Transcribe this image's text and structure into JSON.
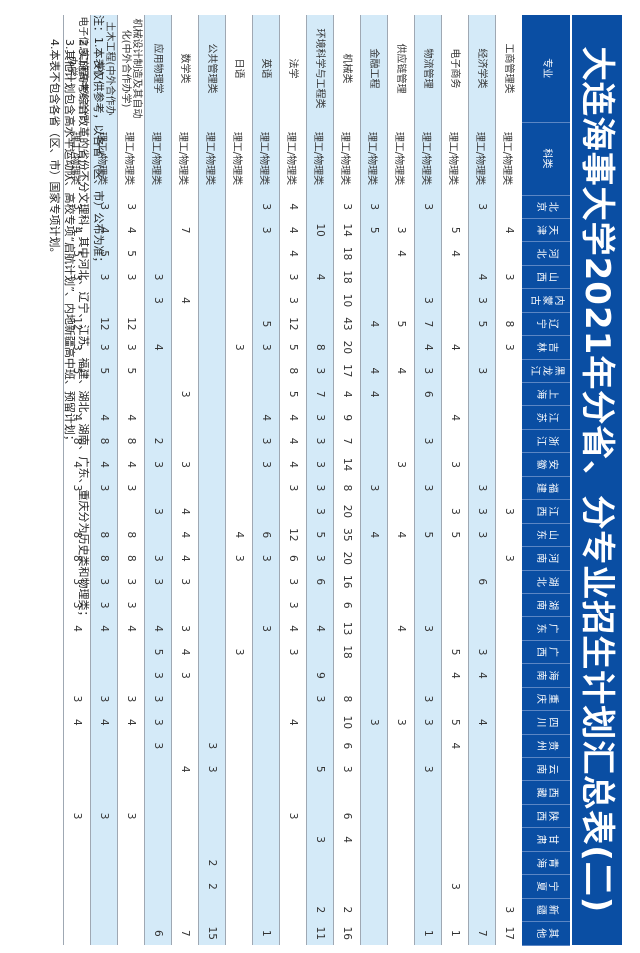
{
  "title": "大连海事大学2021年分省、分专业招生计划汇总表(二)",
  "colors": {
    "header_blue": "#0a4ea3",
    "stripe": "#d4eaf8"
  },
  "headers": {
    "major": "专业",
    "category": "科类",
    "provinces": [
      "北京",
      "天津",
      "河北",
      "山西",
      "内蒙古",
      "辽宁",
      "吉林",
      "黑龙江",
      "上海",
      "江苏",
      "浙江",
      "安徽",
      "福建",
      "江西",
      "山东",
      "河南",
      "湖北",
      "湖南",
      "广东",
      "广西",
      "海南",
      "重庆",
      "四川",
      "贵州",
      "云南",
      "西藏",
      "陕西",
      "甘肃",
      "青海",
      "宁夏",
      "新疆",
      "其他"
    ]
  },
  "rows": [
    {
      "major": "工商管理类",
      "category": "理工/物理类",
      "values": [
        "",
        "4",
        "",
        "3",
        "",
        "8",
        "3",
        "",
        "",
        "",
        "",
        "",
        "",
        "3",
        "",
        "3",
        "",
        "",
        "",
        "",
        "",
        "",
        "",
        "",
        "",
        "",
        "",
        "",
        "",
        "",
        "3",
        "17"
      ]
    },
    {
      "major": "经济学类",
      "category": "理工/物理类",
      "values": [
        "3",
        "",
        "",
        "4",
        "3",
        "5",
        "",
        "3",
        "",
        "",
        "",
        "",
        "3",
        "3",
        "3",
        "",
        "6",
        "",
        "",
        "3",
        "4",
        "",
        "4",
        "",
        "",
        "",
        "",
        "",
        "",
        "",
        "",
        "7"
      ]
    },
    {
      "major": "电子商务",
      "category": "理工/物理类",
      "values": [
        "",
        "5",
        "4",
        "",
        "",
        "",
        "4",
        "",
        "",
        "4",
        "",
        "3",
        "",
        "3",
        "5",
        "",
        "",
        "",
        "",
        "5",
        "4",
        "",
        "5",
        "4",
        "",
        "",
        "",
        "",
        "",
        "3",
        "",
        "1"
      ]
    },
    {
      "major": "物流管理",
      "category": "理工/物理类",
      "values": [
        "3",
        "",
        "",
        "",
        "3",
        "7",
        "4",
        "3",
        "6",
        "",
        "3",
        "",
        "3",
        "",
        "5",
        "",
        "",
        "",
        "3",
        "",
        "",
        "3",
        "3",
        "",
        "3",
        "",
        "",
        "",
        "",
        "",
        "",
        "1"
      ]
    },
    {
      "major": "供应链管理",
      "category": "理工/物理类",
      "values": [
        "",
        "3",
        "4",
        "",
        "",
        "5",
        "",
        "4",
        "",
        "",
        "",
        "3",
        "",
        "",
        "4",
        "",
        "",
        "",
        "4",
        "",
        "",
        "",
        "3",
        "",
        "",
        "",
        "",
        "",
        "",
        "",
        "",
        ""
      ]
    },
    {
      "major": "金融工程",
      "category": "理工/物理类",
      "values": [
        "3",
        "5",
        "",
        "",
        "",
        "4",
        "",
        "4",
        "4",
        "",
        "",
        "",
        "3",
        "",
        "4",
        "",
        "",
        "",
        "",
        "",
        "",
        "",
        "3",
        "",
        "",
        "",
        "",
        "",
        "",
        "",
        "",
        ""
      ]
    },
    {
      "major": "机械类",
      "category": "理工/物理类",
      "values": [
        "3",
        "14",
        "18",
        "18",
        "10",
        "43",
        "20",
        "17",
        "4",
        "9",
        "7",
        "14",
        "8",
        "20",
        "35",
        "20",
        "16",
        "6",
        "13",
        "18",
        "",
        "8",
        "10",
        "6",
        "3",
        "",
        "6",
        "4",
        "",
        "",
        "2",
        "16"
      ]
    },
    {
      "major": "环境科学与工程类",
      "category": "理工/物理类",
      "values": [
        "",
        "10",
        "",
        "4",
        "",
        "",
        "8",
        "3",
        "7",
        "3",
        "3",
        "3",
        "3",
        "3",
        "5",
        "3",
        "6",
        "",
        "4",
        "",
        "9",
        "3",
        "",
        "",
        "5",
        "",
        "",
        "3",
        "",
        "",
        "2",
        "11"
      ]
    },
    {
      "major": "法学",
      "category": "理工/物理类",
      "values": [
        "4",
        "4",
        "4",
        "3",
        "3",
        "12",
        "5",
        "8",
        "5",
        "4",
        "4",
        "4",
        "3",
        "",
        "12",
        "6",
        "3",
        "3",
        "4",
        "3",
        "",
        "",
        "4",
        "",
        "",
        "",
        "3",
        "",
        "",
        "",
        "",
        ""
      ]
    },
    {
      "major": "英语",
      "category": "理工/物理类",
      "values": [
        "3",
        "3",
        "",
        "",
        "",
        "5",
        "3",
        "",
        "",
        "4",
        "3",
        "3",
        "",
        "",
        "6",
        "3",
        "",
        "",
        "3",
        "",
        "",
        "",
        "",
        "",
        "",
        "",
        "",
        "",
        "",
        "",
        "",
        "1"
      ]
    },
    {
      "major": "日语",
      "category": "理工/物理类",
      "values": [
        "",
        "",
        "",
        "",
        "",
        "",
        "3",
        "",
        "",
        "",
        "",
        "",
        "",
        "",
        "4",
        "3",
        "",
        "",
        "",
        "3",
        "",
        "",
        "",
        "",
        "",
        "",
        "",
        "",
        "",
        "",
        "",
        ""
      ]
    },
    {
      "major": "公共管理类",
      "category": "理工/物理类",
      "values": [
        "",
        "",
        "",
        "",
        "",
        "",
        "",
        "",
        "",
        "",
        "",
        "",
        "",
        "",
        "",
        "",
        "",
        "",
        "",
        "",
        "",
        "",
        "",
        "3",
        "3",
        "",
        "",
        "",
        "2",
        "2",
        "",
        "15"
      ]
    },
    {
      "major": "数学类",
      "category": "理工/物理类",
      "values": [
        "",
        "7",
        "",
        "",
        "4",
        "",
        "",
        "",
        "3",
        "",
        "",
        "3",
        "",
        "4",
        "4",
        "4",
        "3",
        "",
        "3",
        "4",
        "3",
        "",
        "",
        "",
        "4",
        "",
        "",
        "",
        "",
        "",
        "",
        "7"
      ]
    },
    {
      "major": "应用物理学",
      "category": "理工/物理类",
      "values": [
        "",
        "",
        "",
        "3",
        "3",
        "",
        "4",
        "",
        "",
        "",
        "2",
        "3",
        "",
        "3",
        "",
        "3",
        "3",
        "",
        "4",
        "5",
        "3",
        "3",
        "3",
        "3",
        "",
        "",
        "",
        "",
        "",
        "",
        "",
        "6"
      ]
    },
    {
      "major": "机械设计制造及其自动化(中外合作办学)",
      "category": "理工/物理类",
      "values": [
        "3",
        "4",
        "5",
        "3",
        "",
        "12",
        "3",
        "5",
        "",
        "4",
        "8",
        "4",
        "3",
        "",
        "8",
        "8",
        "3",
        "3",
        "4",
        "",
        "",
        "3",
        "4",
        "",
        "",
        "",
        "3",
        "",
        "",
        "",
        "",
        ""
      ]
    },
    {
      "major": "土木工程(中外合作办学)",
      "category": "理工/物理类",
      "values": [
        "3",
        "4",
        "5",
        "3",
        "",
        "12",
        "3",
        "5",
        "",
        "4",
        "8",
        "4",
        "3",
        "",
        "8",
        "8",
        "3",
        "3",
        "4",
        "",
        "",
        "3",
        "4",
        "",
        "",
        "",
        "3",
        "",
        "",
        "",
        "",
        ""
      ]
    },
    {
      "major": "电子信息工程(中外合作办学)",
      "category": "理工/物理类",
      "values": [
        "3",
        "4",
        "5",
        "3",
        "",
        "12",
        "3",
        "5",
        "",
        "4",
        "8",
        "4",
        "3",
        "",
        "8",
        "8",
        "3",
        "3",
        "4",
        "",
        "",
        "3",
        "4",
        "",
        "",
        "",
        "3",
        "",
        "",
        "",
        "",
        ""
      ]
    }
  ],
  "notes": [
    "注：1.本表仅供参考，以各省（区、市）公布为准；",
    "2.实施高考综合改革的省份不分文理科，其中河北、辽宁、江苏、福建、湖北、湖南、广东、重庆分为历史类和物理类；",
    "3.其他计划包含高水平运动队、高校专项“启航计划”、内地新疆高中班、预留计划；",
    "4.本表不包含各省（区、市）国家专项计划。"
  ]
}
